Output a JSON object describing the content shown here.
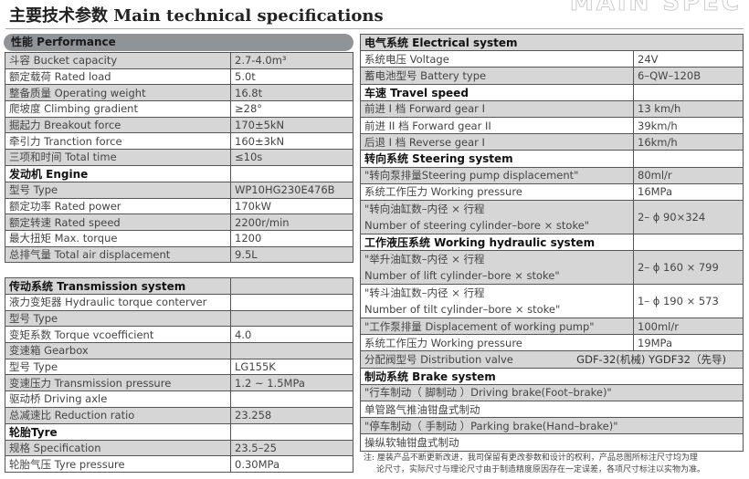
{
  "title": {
    "cn": "主要技术参数",
    "en": "Main technical specifications"
  },
  "performance_header": "性能 Performance",
  "left_table_1": [
    {
      "label": "斗容 Bucket capacity",
      "value": "2.7-4.0m³"
    },
    {
      "label": "额定载荷 Rated load",
      "value": "5.0t"
    },
    {
      "label": "整备质量 Operating weight",
      "value": "16.8t"
    },
    {
      "label": "爬坡度 Climbing gradient",
      "value": "≥28°"
    },
    {
      "label": "掘起力 Breakout force",
      "value": "170±5kN"
    },
    {
      "label": "牵引力 Tranction force",
      "value": "160±3kN"
    },
    {
      "label": "三项和时间 Total time",
      "value": "≤10s"
    },
    {
      "label": "发动机 Engine",
      "value": "",
      "header": true
    },
    {
      "label": "型号 Type",
      "value": "WP10HG230E476B"
    },
    {
      "label": "额定功率 Rated power",
      "value": "170kW"
    },
    {
      "label": "额定转速 Rated speed",
      "value": "2200r/min"
    },
    {
      "label": "最大扭矩 Max. torque",
      "value": "1200"
    },
    {
      "label": "总排气量 Total air displacement",
      "value": "9.5L"
    }
  ],
  "left_table_2": [
    {
      "label": "传动系统 Transmission system",
      "value": "",
      "header": true
    },
    {
      "label": "液力变矩器 Hydraulic torque conterver",
      "value": ""
    },
    {
      "label": "型号 Type",
      "value": ""
    },
    {
      "label": "变矩系数 Torque vcoefficient",
      "value": "4.0"
    },
    {
      "label": "变速箱 Gearbox",
      "value": ""
    },
    {
      "label": "型号 Type",
      "value": "LG155K"
    },
    {
      "label": "变速压力 Transmission pressure",
      "value": "1.2 ~ 1.5MPa"
    },
    {
      "label": "驱动桥 Driving axle",
      "value": ""
    },
    {
      "label": "总减速比 Reduction ratio",
      "value": "23.258"
    },
    {
      "label": "轮胎Tyre",
      "value": "",
      "header": true
    },
    {
      "label": "规格 Specification",
      "value": "23.5–25"
    },
    {
      "label": "轮胎气压 Tyre pressure",
      "value": "0.30MPa"
    }
  ],
  "right_table": [
    {
      "label": "电气系统 Electrical system",
      "header": true,
      "full": true
    },
    {
      "label": "系统电压 Voltage",
      "value": "24V"
    },
    {
      "label": "蓄电池型号 Battery type",
      "value": "6–QW–120B"
    },
    {
      "label": "车速 Travel speed",
      "value": "",
      "header": true
    },
    {
      "label": "前进 I 档 Forward gear  I",
      "value": "13 km/h"
    },
    {
      "label": "前进 II 档 Forward gear  II",
      "value": "39km/h"
    },
    {
      "label": "后退 I 档 Reverse gear  I",
      "value": "16km/h"
    },
    {
      "label": "转向系统 Steering system",
      "value": "",
      "header": true
    },
    {
      "label": "\"转向泵排量Steering pump displacement\"",
      "value": "80ml/r"
    },
    {
      "label": "系统工作压力 Working pressure",
      "value": "16MPa"
    },
    {
      "label": "\"转向油缸数–内径 × 行程",
      "label2": "Number of steering cylinder–bore × stoke\"",
      "value": "2– ϕ 90×324"
    },
    {
      "label": "工作液压系统 Working hydraulic system",
      "value": "",
      "header": true
    },
    {
      "label": "\"举升油缸数–内径 × 行程",
      "label2": "Number of lift cylinder–bore × stoke\"",
      "value": "2– ϕ 160 × 799"
    },
    {
      "label": "\"转斗油缸数–内径 × 行程",
      "label2": "Number of tilt cylinder–bore × stoke\"",
      "value": "1– ϕ 190 × 573"
    },
    {
      "label": "\"工作泵排量 Displacement of working pump\"",
      "value": "100ml/r"
    },
    {
      "label": "系统工作压力 Working pressure",
      "value": "19MPa"
    },
    {
      "label": "分配阀型号 Distribution valve",
      "value": "GDF-32(机械)   YGDF32（先导)",
      "full": true
    },
    {
      "label": "制动系统 Brake system",
      "header": true,
      "full": true
    },
    {
      "label": "\"行车制动（ 脚制动 ）Driving brake(Foot–brake)\"",
      "full": true
    },
    {
      "label": "单管路气推油钳盘式制动",
      "full": true
    },
    {
      "label": "\"停车制动（ 手制动 ）Parking brake(Hand–brake)\"",
      "full": true
    },
    {
      "label": "操纵软轴钳盘式制动",
      "full": true
    }
  ],
  "note": {
    "line1": "注: 厘装产品不断更新改进，我司保留有更改参数和设计的权利，产品总图所标注尺寸均为理",
    "line2": "论尺寸，实际尺寸与理论尺寸由于制造精度原因存在一定误差，各项尺寸标注以实物为准。"
  }
}
